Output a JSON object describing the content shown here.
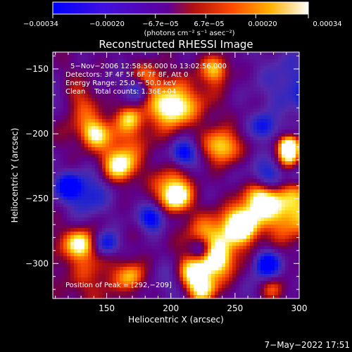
{
  "chart_data": {
    "type": "heatmap",
    "title": "Reconstructed RHESSI Image",
    "xlabel": "Heliocentric X (arcsec)",
    "ylabel": "Heliocentric Y (arcsec)",
    "xlim": [
      108,
      300
    ],
    "ylim": [
      -327,
      -137
    ],
    "xticks": [
      150,
      200,
      250,
      300
    ],
    "yticks": [
      -150,
      -200,
      -250,
      -300
    ],
    "colorbar": {
      "range": [
        -0.00034,
        0.00034
      ],
      "tick_labels": [
        "−0.00034",
        "−0.00020",
        "−6.7e−05",
        "6.7e−05",
        "0.00020",
        "0.00034"
      ],
      "tick_values": [
        -0.00034,
        -0.0002,
        -6.7e-05,
        6.7e-05,
        0.0002,
        0.00034
      ],
      "units": "(photons cm⁻² s⁻¹ asec⁻²)",
      "colors": [
        "#0000ff",
        "#5a00c8",
        "#6000a0",
        "#ff5a00",
        "#ffb400",
        "#ffffff"
      ]
    },
    "annotations": [
      "5−Nov−2006 12:58:56.000 to 13:02:56.000",
      "Detectors: 3F 4F 5F 6F 7F 8F, Att 0",
      "Energy Range: 25.0 − 50.0 keV",
      "Clean    Total counts: 1.36E+04"
    ],
    "peak_label": "Position of Peak = [292,−209]",
    "peak": [
      292,
      -209
    ]
  },
  "footer": {
    "timestamp": "7−May−2022 17:51"
  }
}
